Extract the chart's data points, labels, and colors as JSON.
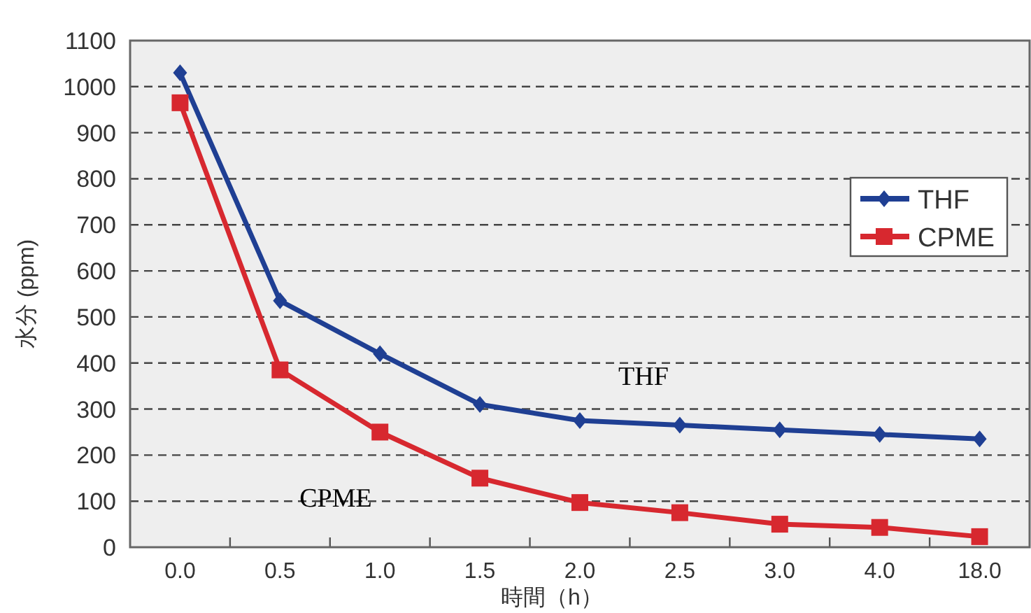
{
  "chart_data": {
    "type": "line",
    "xlabel": "時間（h）",
    "ylabel": "水分 (ppm)",
    "categories": [
      "0.0",
      "0.5",
      "1.0",
      "1.5",
      "2.0",
      "2.5",
      "3.0",
      "4.0",
      "18.0"
    ],
    "series": [
      {
        "name": "THF",
        "color": "#1f3f93",
        "marker": "diamond",
        "values": [
          1030,
          535,
          420,
          310,
          275,
          265,
          255,
          245,
          235
        ]
      },
      {
        "name": "CPME",
        "color": "#d7282f",
        "marker": "square",
        "values": [
          965,
          385,
          250,
          150,
          97,
          75,
          50,
          43,
          23
        ]
      }
    ],
    "ylim": [
      0,
      1100
    ],
    "yticks": [
      0,
      100,
      200,
      300,
      400,
      500,
      600,
      700,
      800,
      900,
      1000,
      1100
    ],
    "grid": "y",
    "legend": "top right",
    "line_style": "solid",
    "annotations": [
      "THF",
      "CPME"
    ]
  }
}
